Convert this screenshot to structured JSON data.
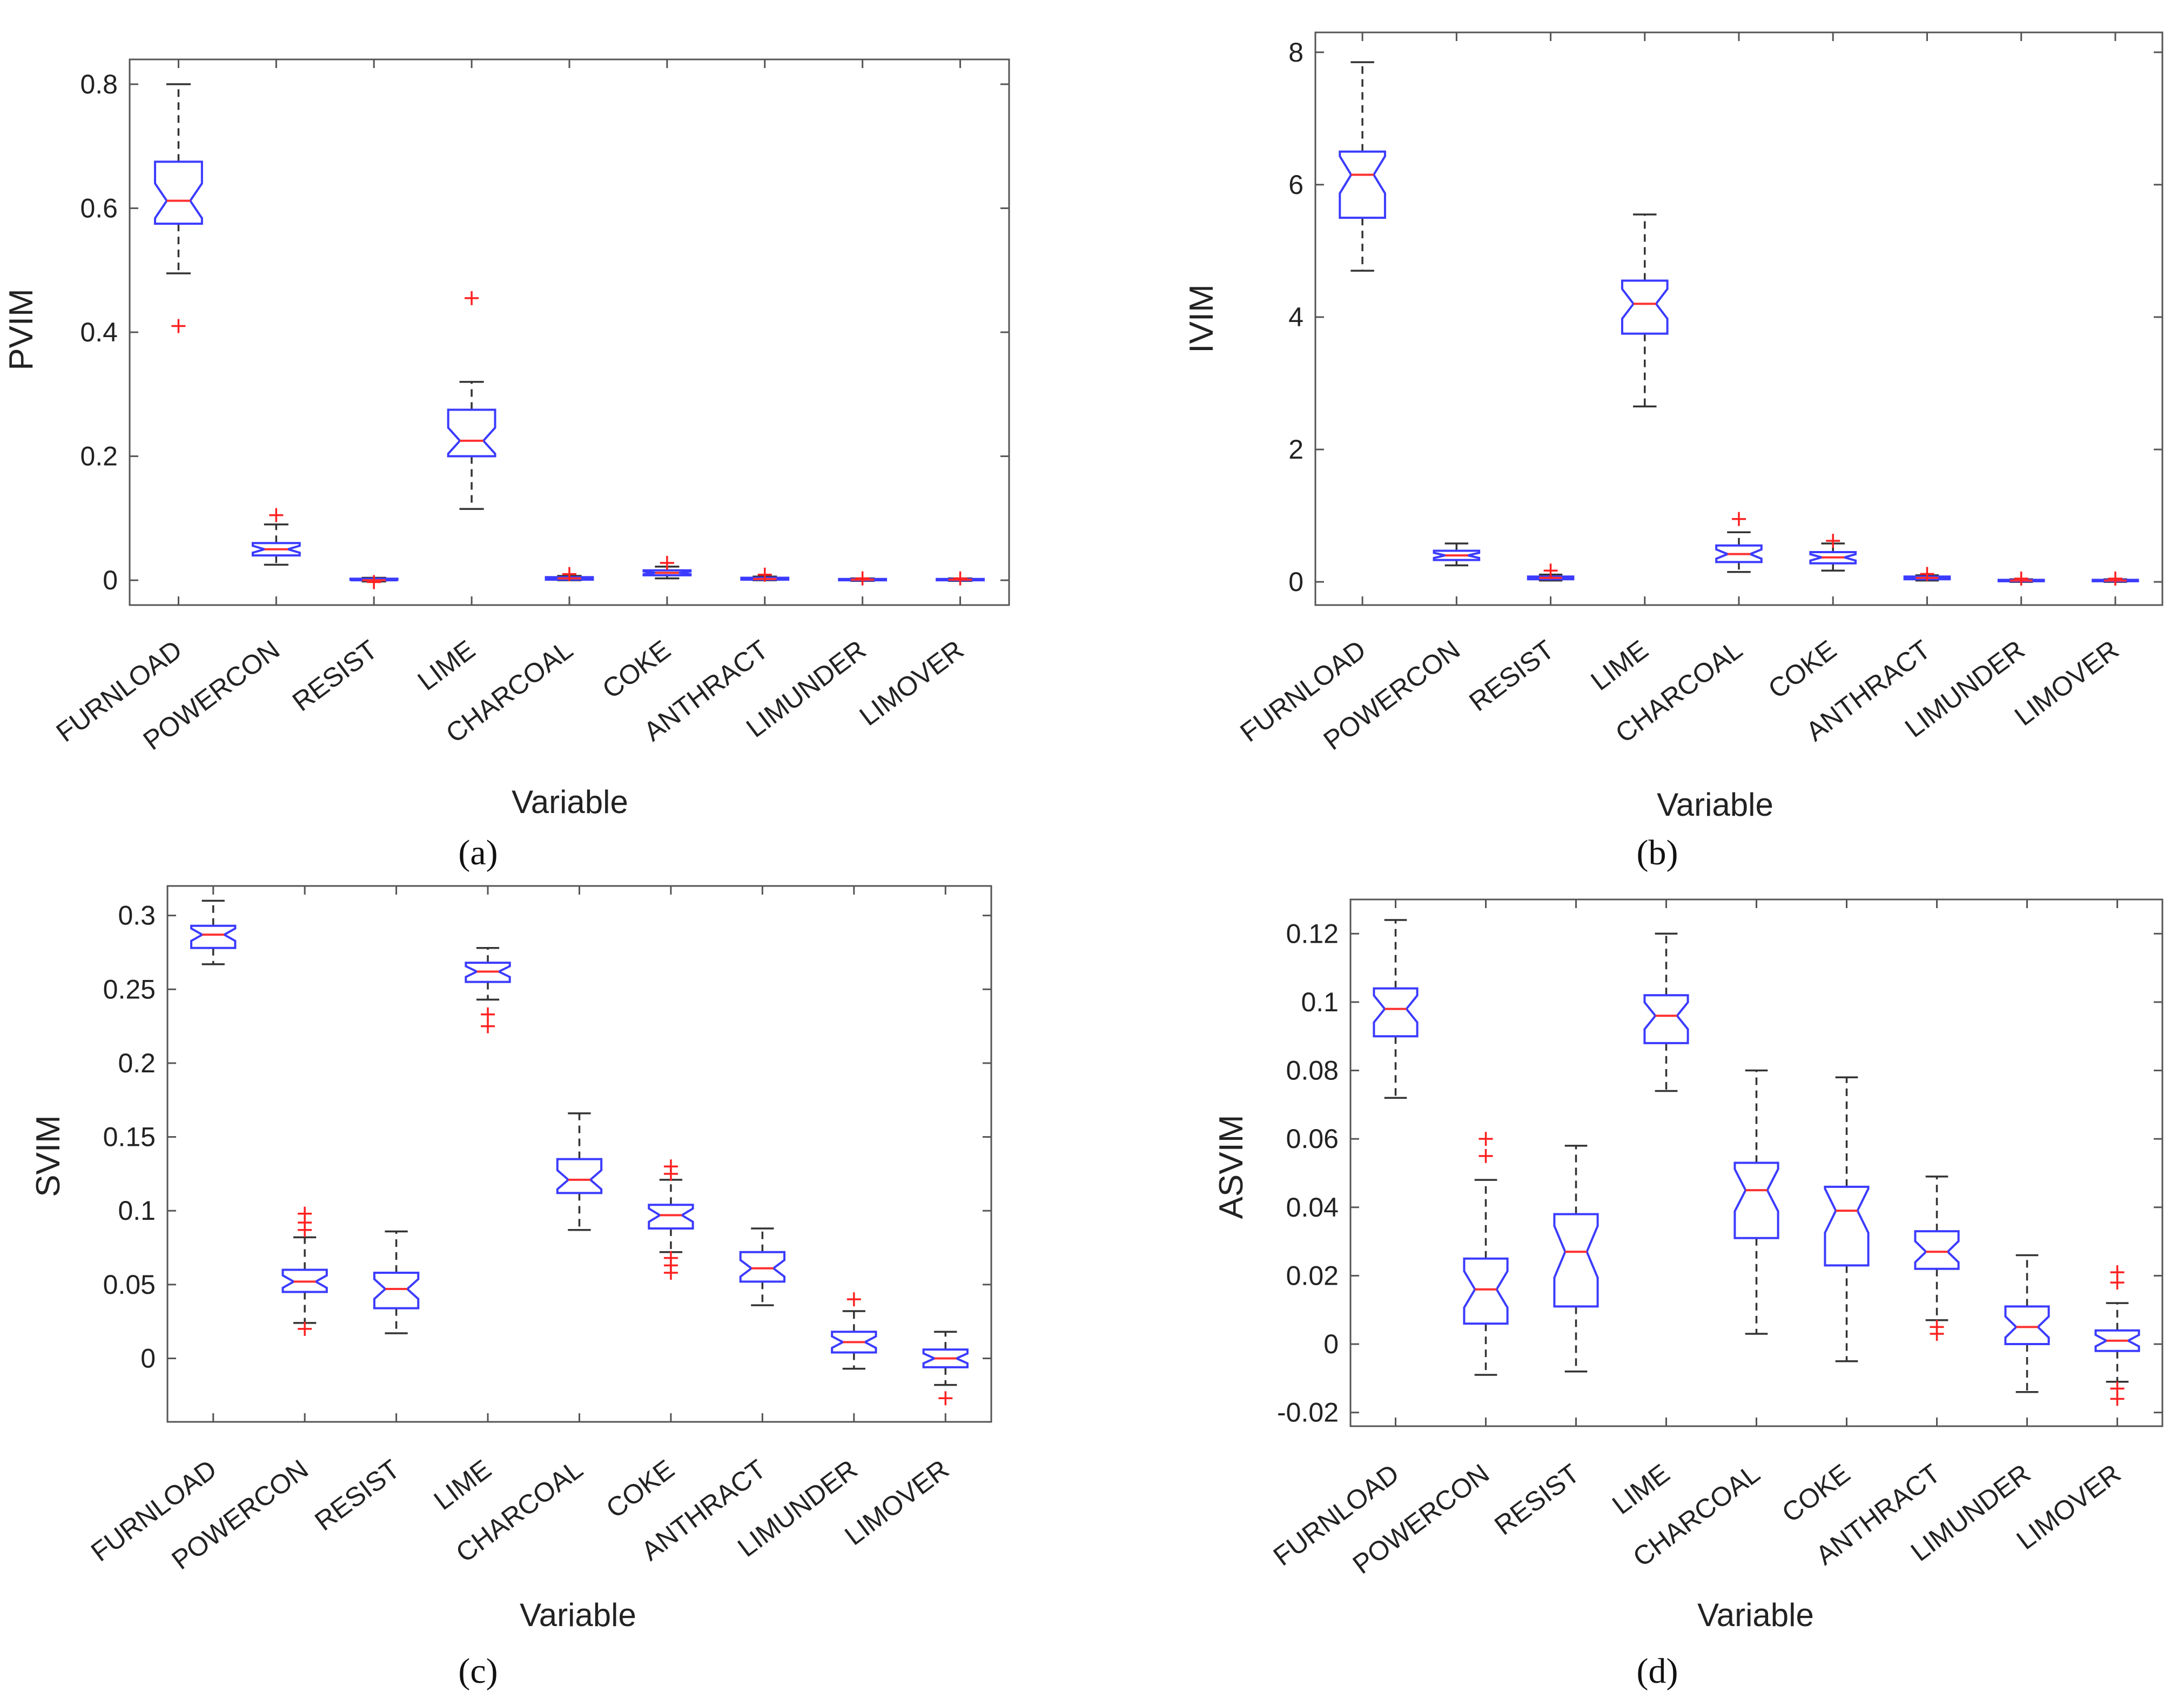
{
  "figure": {
    "panels": [
      "(a)",
      "(b)",
      "(c)",
      "(d)"
    ]
  },
  "colors": {
    "box": "#3b3bff",
    "median": "#ff3030",
    "outlier": "#ff2020",
    "whisker": "#333333",
    "axis": "#555555",
    "text": "#222222"
  },
  "chart_data": [
    {
      "type": "boxplot",
      "panel": "(a)",
      "ylabel": "PVIM",
      "xlabel": "Variable",
      "ylim": [
        -0.04,
        0.84
      ],
      "yticks": [
        0,
        0.2,
        0.4,
        0.6,
        0.8
      ],
      "ytick_labels": [
        "0",
        "0.2",
        "0.4",
        "0.6",
        "0.8"
      ],
      "categories": [
        "FURNLOAD",
        "POWERCON",
        "RESIST",
        "LIME",
        "CHARCOAL",
        "COKE",
        "ANTHRACT",
        "LIMUNDER",
        "LIMOVER"
      ],
      "boxes": [
        {
          "q1": 0.575,
          "median": 0.612,
          "q3": 0.675,
          "wl": 0.495,
          "wh": 0.8,
          "out": [
            0.41
          ]
        },
        {
          "q1": 0.04,
          "median": 0.05,
          "q3": 0.06,
          "wl": 0.025,
          "wh": 0.09,
          "out": [
            0.105
          ]
        },
        {
          "q1": 0.0,
          "median": 0.0,
          "q3": 0.0025,
          "wl": -0.002,
          "wh": 0.004,
          "out": [
            -0.003
          ]
        },
        {
          "q1": 0.2,
          "median": 0.225,
          "q3": 0.275,
          "wl": 0.115,
          "wh": 0.32,
          "out": [
            0.455
          ]
        },
        {
          "q1": 0.001,
          "median": 0.003,
          "q3": 0.005,
          "wl": 0.0,
          "wh": 0.007,
          "out": [
            0.01
          ]
        },
        {
          "q1": 0.008,
          "median": 0.012,
          "q3": 0.016,
          "wl": 0.003,
          "wh": 0.022,
          "out": [
            0.028
          ]
        },
        {
          "q1": 0.001,
          "median": 0.002,
          "q3": 0.004,
          "wl": 0.0,
          "wh": 0.006,
          "out": [
            0.009
          ]
        },
        {
          "q1": 0.0,
          "median": 0.001,
          "q3": 0.002,
          "wl": -0.001,
          "wh": 0.003,
          "out": [
            0.003
          ]
        },
        {
          "q1": 0.0,
          "median": 0.001,
          "q3": 0.002,
          "wl": -0.001,
          "wh": 0.003,
          "out": [
            0.003
          ]
        }
      ]
    },
    {
      "type": "boxplot",
      "panel": "(b)",
      "ylabel": "IVIM",
      "xlabel": "Variable",
      "ylim": [
        -0.35,
        8.3
      ],
      "yticks": [
        0,
        2,
        4,
        6,
        8
      ],
      "ytick_labels": [
        "0",
        "2",
        "4",
        "6",
        "8"
      ],
      "categories": [
        "FURNLOAD",
        "POWERCON",
        "RESIST",
        "LIME",
        "CHARCOAL",
        "COKE",
        "ANTHRACT",
        "LIMUNDER",
        "LIMOVER"
      ],
      "boxes": [
        {
          "q1": 5.5,
          "median": 6.15,
          "q3": 6.5,
          "wl": 4.7,
          "wh": 7.85,
          "out": []
        },
        {
          "q1": 0.33,
          "median": 0.4,
          "q3": 0.47,
          "wl": 0.25,
          "wh": 0.58,
          "out": []
        },
        {
          "q1": 0.04,
          "median": 0.06,
          "q3": 0.08,
          "wl": 0.02,
          "wh": 0.11,
          "out": [
            0.17
          ]
        },
        {
          "q1": 3.75,
          "median": 4.2,
          "q3": 4.55,
          "wl": 2.65,
          "wh": 5.55,
          "out": []
        },
        {
          "q1": 0.3,
          "median": 0.42,
          "q3": 0.55,
          "wl": 0.15,
          "wh": 0.75,
          "out": [
            0.95
          ]
        },
        {
          "q1": 0.28,
          "median": 0.37,
          "q3": 0.45,
          "wl": 0.17,
          "wh": 0.58,
          "out": [
            0.62
          ]
        },
        {
          "q1": 0.04,
          "median": 0.06,
          "q3": 0.08,
          "wl": 0.02,
          "wh": 0.1,
          "out": [
            0.12
          ]
        },
        {
          "q1": 0.01,
          "median": 0.02,
          "q3": 0.03,
          "wl": 0.0,
          "wh": 0.04,
          "out": [
            0.05
          ]
        },
        {
          "q1": 0.01,
          "median": 0.02,
          "q3": 0.03,
          "wl": 0.0,
          "wh": 0.04,
          "out": [
            0.05
          ]
        }
      ]
    },
    {
      "type": "boxplot",
      "panel": "(c)",
      "ylabel": "SVIM",
      "xlabel": "Variable",
      "ylim": [
        -0.043,
        0.32
      ],
      "yticks": [
        0,
        0.05,
        0.1,
        0.15,
        0.2,
        0.25,
        0.3
      ],
      "ytick_labels": [
        "0",
        "0.05",
        "0.1",
        "0.15",
        "0.2",
        "0.25",
        "0.3"
      ],
      "categories": [
        "FURNLOAD",
        "POWERCON",
        "RESIST",
        "LIME",
        "CHARCOAL",
        "COKE",
        "ANTHRACT",
        "LIMUNDER",
        "LIMOVER"
      ],
      "boxes": [
        {
          "q1": 0.278,
          "median": 0.287,
          "q3": 0.293,
          "wl": 0.267,
          "wh": 0.31,
          "out": []
        },
        {
          "q1": 0.045,
          "median": 0.052,
          "q3": 0.06,
          "wl": 0.024,
          "wh": 0.082,
          "out": [
            0.02,
            0.087,
            0.092,
            0.098
          ]
        },
        {
          "q1": 0.034,
          "median": 0.047,
          "q3": 0.058,
          "wl": 0.017,
          "wh": 0.086,
          "out": []
        },
        {
          "q1": 0.255,
          "median": 0.262,
          "q3": 0.268,
          "wl": 0.243,
          "wh": 0.278,
          "out": [
            0.225,
            0.233
          ]
        },
        {
          "q1": 0.112,
          "median": 0.121,
          "q3": 0.135,
          "wl": 0.087,
          "wh": 0.166,
          "out": []
        },
        {
          "q1": 0.088,
          "median": 0.097,
          "q3": 0.104,
          "wl": 0.072,
          "wh": 0.121,
          "out": [
            0.058,
            0.063,
            0.068,
            0.125,
            0.13
          ]
        },
        {
          "q1": 0.052,
          "median": 0.061,
          "q3": 0.072,
          "wl": 0.036,
          "wh": 0.088,
          "out": []
        },
        {
          "q1": 0.004,
          "median": 0.011,
          "q3": 0.018,
          "wl": -0.007,
          "wh": 0.032,
          "out": [
            0.04
          ]
        },
        {
          "q1": -0.006,
          "median": 0.0,
          "q3": 0.006,
          "wl": -0.018,
          "wh": 0.018,
          "out": [
            -0.027
          ]
        }
      ]
    },
    {
      "type": "boxplot",
      "panel": "(d)",
      "ylabel": "ASVIM",
      "xlabel": "Variable",
      "ylim": [
        -0.024,
        0.13
      ],
      "yticks": [
        -0.02,
        0,
        0.02,
        0.04,
        0.06,
        0.08,
        0.1,
        0.12
      ],
      "ytick_labels": [
        "-0.02",
        "0",
        "0.02",
        "0.04",
        "0.06",
        "0.08",
        "0.1",
        "0.12"
      ],
      "categories": [
        "FURNLOAD",
        "POWERCON",
        "RESIST",
        "LIME",
        "CHARCOAL",
        "COKE",
        "ANTHRACT",
        "LIMUNDER",
        "LIMOVER"
      ],
      "boxes": [
        {
          "q1": 0.09,
          "median": 0.098,
          "q3": 0.104,
          "wl": 0.072,
          "wh": 0.124,
          "out": []
        },
        {
          "q1": 0.006,
          "median": 0.016,
          "q3": 0.025,
          "wl": -0.009,
          "wh": 0.048,
          "out": [
            0.055,
            0.06
          ]
        },
        {
          "q1": 0.011,
          "median": 0.027,
          "q3": 0.038,
          "wl": -0.008,
          "wh": 0.058,
          "out": []
        },
        {
          "q1": 0.088,
          "median": 0.096,
          "q3": 0.102,
          "wl": 0.074,
          "wh": 0.12,
          "out": []
        },
        {
          "q1": 0.031,
          "median": 0.045,
          "q3": 0.053,
          "wl": 0.003,
          "wh": 0.08,
          "out": []
        },
        {
          "q1": 0.023,
          "median": 0.039,
          "q3": 0.046,
          "wl": -0.005,
          "wh": 0.078,
          "out": []
        },
        {
          "q1": 0.022,
          "median": 0.027,
          "q3": 0.033,
          "wl": 0.007,
          "wh": 0.049,
          "out": [
            0.003,
            0.005
          ]
        },
        {
          "q1": 0.0,
          "median": 0.005,
          "q3": 0.011,
          "wl": -0.014,
          "wh": 0.026,
          "out": []
        },
        {
          "q1": -0.002,
          "median": 0.001,
          "q3": 0.004,
          "wl": -0.011,
          "wh": 0.012,
          "out": [
            -0.016,
            -0.013,
            0.018,
            0.021
          ]
        }
      ]
    }
  ]
}
